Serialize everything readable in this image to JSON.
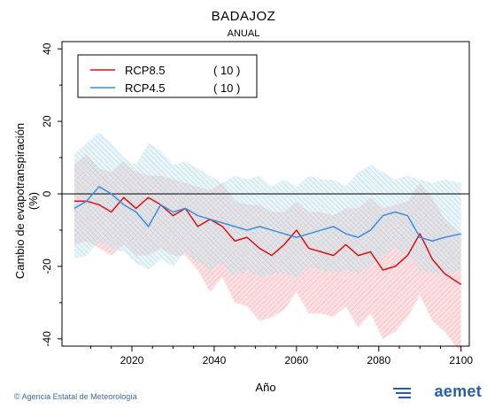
{
  "header": {
    "title": "BADAJOZ",
    "subtitle": "ANUAL"
  },
  "credit": "© Agencia Estatal de Meteorología",
  "logo_text": "aemet",
  "chart_data": {
    "type": "line",
    "xlabel": "Año",
    "ylabel": "Cambio de evapotranspiración (%)",
    "xlim": [
      2003,
      2102
    ],
    "ylim": [
      -42,
      42
    ],
    "xticks": [
      2020,
      2040,
      2060,
      2080,
      2100
    ],
    "yticks": [
      -40,
      -20,
      0,
      20,
      40
    ],
    "legend_position": "top-left",
    "series": [
      {
        "name": "RCP8.5",
        "count": "( 10 )",
        "color": "#dd1111",
        "band_color": "#f4a0a8",
        "x": [
          2006,
          2009,
          2012,
          2015,
          2018,
          2021,
          2024,
          2027,
          2030,
          2033,
          2036,
          2039,
          2042,
          2045,
          2048,
          2051,
          2054,
          2057,
          2060,
          2063,
          2066,
          2069,
          2072,
          2075,
          2078,
          2081,
          2084,
          2087,
          2090,
          2093,
          2096,
          2100
        ],
        "mean": [
          -2,
          -2,
          -3,
          -5,
          -1,
          -4,
          -1,
          -3,
          -6,
          -4,
          -9,
          -7,
          -9,
          -13,
          -12,
          -15,
          -17,
          -14,
          -10,
          -15,
          -16,
          -17,
          -14,
          -17,
          -16,
          -21,
          -20,
          -17,
          -11,
          -18,
          -22,
          -25
        ],
        "upper": [
          8,
          11,
          7,
          6,
          9,
          6,
          5,
          5,
          4,
          3,
          2,
          1,
          3,
          -2,
          -3,
          -3,
          -5,
          -5,
          -2,
          -5,
          -5,
          -6,
          -4,
          -4,
          -1,
          -4,
          -3,
          -2,
          3,
          -1,
          -7,
          -11
        ],
        "lower": [
          -14,
          -13,
          -15,
          -17,
          -14,
          -17,
          -17,
          -15,
          -17,
          -17,
          -21,
          -27,
          -23,
          -30,
          -31,
          -35,
          -34,
          -32,
          -27,
          -33,
          -33,
          -34,
          -31,
          -37,
          -33,
          -40,
          -38,
          -34,
          -28,
          -35,
          -38,
          -44
        ]
      },
      {
        "name": "RCP4.5",
        "count": "( 10 )",
        "color": "#3a8ee0",
        "band_color": "#a8dce4",
        "x": [
          2006,
          2009,
          2012,
          2015,
          2018,
          2021,
          2024,
          2027,
          2030,
          2033,
          2036,
          2039,
          2042,
          2045,
          2048,
          2051,
          2054,
          2057,
          2060,
          2063,
          2066,
          2069,
          2072,
          2075,
          2078,
          2081,
          2084,
          2087,
          2090,
          2093,
          2096,
          2100
        ],
        "mean": [
          -4,
          -2,
          2,
          0,
          -3,
          -5,
          -9,
          -3,
          -5,
          -4,
          -6,
          -7,
          -8,
          -9,
          -10,
          -9,
          -10,
          -11,
          -12,
          -11,
          -10,
          -9,
          -11,
          -12,
          -10,
          -6,
          -5,
          -6,
          -12,
          -13,
          -12,
          -11
        ],
        "upper": [
          11,
          14,
          17,
          14,
          10,
          8,
          14,
          12,
          8,
          9,
          7,
          5,
          3,
          5,
          4,
          5,
          2,
          4,
          2,
          5,
          4,
          4,
          2,
          6,
          8,
          6,
          4,
          5,
          4,
          3,
          4,
          3
        ],
        "lower": [
          -18,
          -17,
          -13,
          -15,
          -16,
          -19,
          -21,
          -18,
          -20,
          -16,
          -19,
          -21,
          -19,
          -23,
          -21,
          -23,
          -22,
          -22,
          -23,
          -20,
          -21,
          -22,
          -21,
          -22,
          -20,
          -17,
          -15,
          -17,
          -21,
          -22,
          -22,
          -21
        ]
      }
    ]
  }
}
